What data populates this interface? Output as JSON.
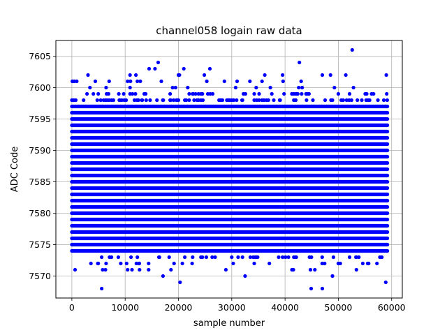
{
  "chart_data": {
    "type": "scatter",
    "title": "channel058 logain raw data",
    "xlabel": "sample number",
    "ylabel": "ADC Code",
    "xlim": [
      -3000,
      62000
    ],
    "ylim": [
      7566.5,
      7607.5
    ],
    "xticks": [
      0,
      10000,
      20000,
      30000,
      40000,
      50000,
      60000
    ],
    "yticks": [
      7570,
      7575,
      7580,
      7585,
      7590,
      7595,
      7600,
      7605
    ],
    "grid": true,
    "marker_color": "#0000ff",
    "series": [
      {
        "dense_band": {
          "x_range": [
            0,
            59200
          ],
          "y_range": [
            7574,
            7597
          ],
          "level_step": 1
        },
        "sparse_levels": {
          "7598": 0.65,
          "7599": 0.4,
          "7600": 0.22,
          "7601": 0.08,
          "7602": 0.04,
          "7603": 0.02,
          "7573": 0.35,
          "7572": 0.15,
          "7571": 0.06
        },
        "outliers": [
          {
            "x": 52600,
            "y": 7606
          },
          {
            "x": 42700,
            "y": 7604
          },
          {
            "x": 16200,
            "y": 7604
          },
          {
            "x": 14500,
            "y": 7603
          },
          {
            "x": 15600,
            "y": 7603
          },
          {
            "x": 25900,
            "y": 7603
          },
          {
            "x": 20000,
            "y": 7602
          },
          {
            "x": 51400,
            "y": 7602
          },
          {
            "x": 59000,
            "y": 7602
          },
          {
            "x": 36200,
            "y": 7602
          },
          {
            "x": 47000,
            "y": 7602
          },
          {
            "x": 7000,
            "y": 7601
          },
          {
            "x": 11000,
            "y": 7601
          },
          {
            "x": 33400,
            "y": 7601
          },
          {
            "x": 5600,
            "y": 7568
          },
          {
            "x": 44900,
            "y": 7568
          },
          {
            "x": 47000,
            "y": 7568
          },
          {
            "x": 600,
            "y": 7571
          },
          {
            "x": 6300,
            "y": 7571
          },
          {
            "x": 17100,
            "y": 7570
          },
          {
            "x": 20300,
            "y": 7569
          },
          {
            "x": 32500,
            "y": 7570
          },
          {
            "x": 48900,
            "y": 7570
          },
          {
            "x": 58900,
            "y": 7569
          },
          {
            "x": 41300,
            "y": 7571
          },
          {
            "x": 12700,
            "y": 7571
          },
          {
            "x": 18600,
            "y": 7571
          }
        ]
      }
    ]
  }
}
